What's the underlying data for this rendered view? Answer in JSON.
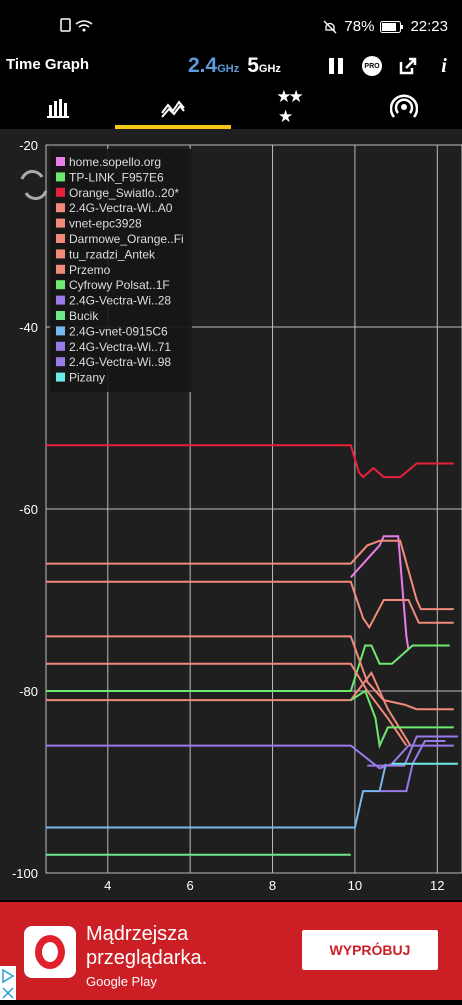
{
  "status_bar": {
    "battery": "78%",
    "time": "22:23"
  },
  "app": {
    "title": "Time Graph",
    "bands": [
      {
        "value": "2.4",
        "unit": "GHz",
        "active": true
      },
      {
        "value": "5",
        "unit": "GHz",
        "active": false
      }
    ],
    "actions": [
      "pause-icon",
      "pro-badge",
      "share-icon",
      "info-icon"
    ],
    "pro_label": "PRO",
    "info_label": "i"
  },
  "tabs": [
    {
      "icon": "channel-graph-icon",
      "active": false
    },
    {
      "icon": "time-graph-icon",
      "active": true
    },
    {
      "icon": "channel-rating-icon",
      "active": false
    },
    {
      "icon": "ap-list-icon",
      "active": false
    }
  ],
  "chart_data": {
    "type": "line",
    "x_ticks": [
      "4",
      "6",
      "8",
      "10",
      "12"
    ],
    "y_ticks": [
      "-20",
      "-40",
      "-60",
      "-80",
      "-100"
    ],
    "xlim": [
      2.5,
      12.6
    ],
    "ylim": [
      -100,
      -20
    ],
    "grid": true,
    "legend_position": "top-left",
    "series": [
      {
        "name": "home.sopello.org",
        "color": "#e87de8",
        "points": [
          [
            9.9,
            -67.5
          ],
          [
            10.6,
            -64
          ],
          [
            10.7,
            -63
          ],
          [
            11.05,
            -63
          ],
          [
            11.25,
            -74
          ],
          [
            11.3,
            -75.5
          ]
        ]
      },
      {
        "name": "TP-LINK_F957E6",
        "color": "#6ee86e",
        "points": [
          [
            2.5,
            -80
          ],
          [
            9.9,
            -80
          ],
          [
            10.25,
            -75
          ],
          [
            10.4,
            -75
          ],
          [
            10.6,
            -77
          ],
          [
            10.9,
            -77
          ],
          [
            11.4,
            -75
          ],
          [
            12.3,
            -75
          ]
        ]
      },
      {
        "name": "Orange_Swiatlo..20*",
        "color": "#e8203a",
        "points": [
          [
            2.5,
            -53
          ],
          [
            9.9,
            -53
          ],
          [
            10.1,
            -56
          ],
          [
            10.2,
            -56.5
          ],
          [
            10.45,
            -55.5
          ],
          [
            10.7,
            -56.5
          ],
          [
            11.1,
            -56.5
          ],
          [
            11.5,
            -55
          ],
          [
            12.4,
            -55
          ]
        ]
      },
      {
        "name": "2.4G-Vectra-Wi..A0",
        "color": "#f08a7a",
        "points": [
          [
            2.5,
            -66
          ],
          [
            9.9,
            -66
          ],
          [
            10.3,
            -64
          ],
          [
            10.6,
            -63.5
          ],
          [
            11.1,
            -63.5
          ],
          [
            11.5,
            -70
          ],
          [
            11.6,
            -71
          ],
          [
            12.4,
            -71
          ]
        ]
      },
      {
        "name": "vnet-epc3928",
        "color": "#f08a7a",
        "points": [
          [
            2.5,
            -68
          ],
          [
            9.9,
            -68
          ],
          [
            10.2,
            -72
          ],
          [
            10.35,
            -73
          ],
          [
            10.7,
            -70
          ],
          [
            11.3,
            -70
          ],
          [
            11.55,
            -72.5
          ],
          [
            12.4,
            -72.5
          ]
        ]
      },
      {
        "name": "Darmowe_Orange..Fi",
        "color": "#f08a7a",
        "points": [
          [
            2.5,
            -74
          ],
          [
            9.9,
            -74
          ],
          [
            10.3,
            -79
          ],
          [
            10.7,
            -81
          ],
          [
            11.2,
            -81.5
          ],
          [
            11.5,
            -82
          ],
          [
            12.4,
            -82
          ]
        ]
      },
      {
        "name": "tu_rzadzi_Antek",
        "color": "#f08a7a",
        "points": [
          [
            2.5,
            -77
          ],
          [
            9.9,
            -77
          ],
          [
            10.3,
            -80
          ],
          [
            10.8,
            -83
          ],
          [
            11.25,
            -86
          ]
        ]
      },
      {
        "name": "Przemo",
        "color": "#f08a7a",
        "points": [
          [
            2.5,
            -81
          ],
          [
            9.9,
            -81
          ],
          [
            10.4,
            -78
          ],
          [
            10.8,
            -82
          ],
          [
            11.35,
            -86
          ]
        ]
      },
      {
        "name": "Cyfrowy Polsat..1F",
        "color": "#6ee86e",
        "points": [
          [
            9.9,
            -81
          ],
          [
            10.25,
            -80
          ],
          [
            10.5,
            -83
          ],
          [
            10.6,
            -86
          ],
          [
            10.8,
            -84
          ],
          [
            12.4,
            -84
          ]
        ]
      },
      {
        "name": "2.4G-Vectra-Wi..28",
        "color": "#9a7ae8",
        "points": [
          [
            2.5,
            -86
          ],
          [
            9.9,
            -86
          ],
          [
            10.6,
            -88.5
          ],
          [
            10.9,
            -88
          ],
          [
            11.3,
            -86
          ],
          [
            12.4,
            -86
          ]
        ]
      },
      {
        "name": "Bucik",
        "color": "#6ee88c",
        "points": [
          [
            2.5,
            -98
          ],
          [
            9.9,
            -98
          ]
        ]
      },
      {
        "name": "2.4G-vnet-0915C6",
        "color": "#78b8f0",
        "points": [
          [
            2.5,
            -95
          ],
          [
            10.0,
            -95
          ],
          [
            10.2,
            -91
          ],
          [
            10.6,
            -91
          ],
          [
            10.75,
            -88
          ]
        ]
      },
      {
        "name": "2.4G-Vectra-Wi..71",
        "color": "#9a7ae8",
        "points": [
          [
            10.3,
            -88.2
          ],
          [
            11.2,
            -88.2
          ],
          [
            11.5,
            -85
          ],
          [
            12.5,
            -85
          ]
        ]
      },
      {
        "name": "2.4G-Vectra-Wi..98",
        "color": "#9a7ae8",
        "points": [
          [
            10.6,
            -91
          ],
          [
            11.25,
            -91
          ],
          [
            11.4,
            -88
          ],
          [
            11.7,
            -85.5
          ],
          [
            12.2,
            -85.5
          ]
        ]
      },
      {
        "name": "Pizany",
        "color": "#6ee8e8",
        "points": [
          [
            10.9,
            -88
          ],
          [
            12.5,
            -88
          ]
        ]
      }
    ]
  },
  "ad": {
    "headline": "Mądrzejsza przeglądarka.",
    "store": "Google Play",
    "button": "WYPRÓBUJ"
  }
}
